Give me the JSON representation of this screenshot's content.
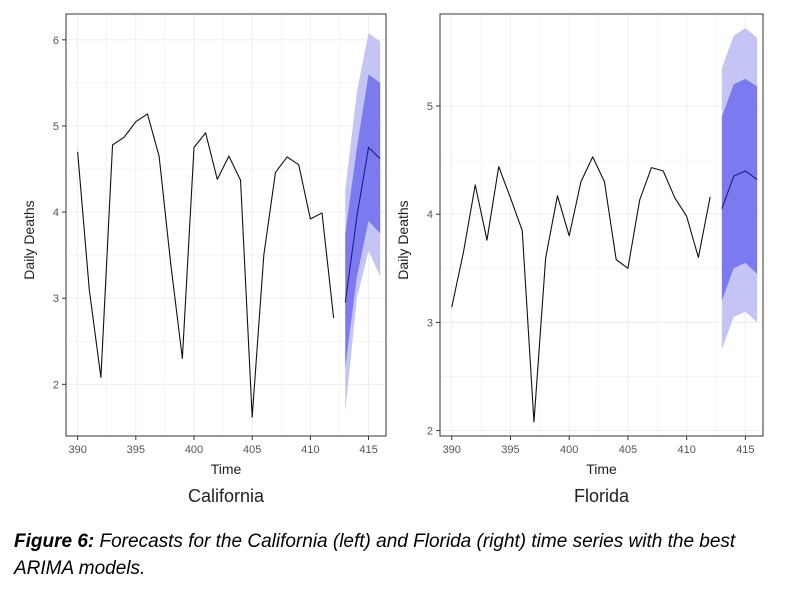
{
  "caption": {
    "label": "Figure 6:",
    "text": " Forecasts for the California (left) and Florida (right) time series with the best ARIMA models."
  },
  "colors": {
    "line": "#111111",
    "band_outer": "#c5c5f5",
    "band_inner": "#7b7bef",
    "forecast_line": "#1d1d8a",
    "grid": "#ececec",
    "panel_border": "#333333"
  },
  "chart_data": [
    {
      "type": "line",
      "title": "California",
      "xlabel": "Time",
      "ylabel": "Daily Deaths",
      "xlim": [
        389,
        416.5
      ],
      "ylim": [
        1.4,
        6.3
      ],
      "xticks": [
        390,
        395,
        400,
        405,
        410,
        415
      ],
      "yticks": [
        2,
        3,
        4,
        5,
        6
      ],
      "grid": true,
      "x": [
        390,
        391,
        392,
        393,
        394,
        395,
        396,
        397,
        398,
        399,
        400,
        401,
        402,
        403,
        404,
        405,
        406,
        407,
        408,
        409,
        410,
        411,
        412
      ],
      "y": [
        4.7,
        3.1,
        2.08,
        4.78,
        4.87,
        5.05,
        5.14,
        4.65,
        3.4,
        2.3,
        4.75,
        4.92,
        4.38,
        4.65,
        4.37,
        1.62,
        3.5,
        4.46,
        4.64,
        4.55,
        3.92,
        3.99,
        2.77
      ],
      "forecast": {
        "x": [
          413,
          414,
          415,
          416
        ],
        "mean": [
          2.95,
          3.95,
          4.75,
          4.62
        ],
        "lo80": [
          2.2,
          3.25,
          3.9,
          3.75
        ],
        "hi80": [
          3.75,
          4.75,
          5.6,
          5.5
        ],
        "lo95": [
          1.68,
          3.0,
          3.55,
          3.25
        ],
        "hi95": [
          4.25,
          5.4,
          6.08,
          5.98
        ]
      }
    },
    {
      "type": "line",
      "title": "Florida",
      "xlabel": "Time",
      "ylabel": "Daily Deaths",
      "xlim": [
        389,
        416.5
      ],
      "ylim": [
        1.95,
        5.85
      ],
      "xticks": [
        390,
        395,
        400,
        405,
        410,
        415
      ],
      "yticks": [
        2,
        3,
        4,
        5
      ],
      "grid": true,
      "x": [
        390,
        391,
        392,
        393,
        394,
        395,
        396,
        397,
        398,
        399,
        400,
        401,
        402,
        403,
        404,
        405,
        406,
        407,
        408,
        409,
        410,
        411,
        412
      ],
      "y": [
        3.14,
        3.65,
        4.27,
        3.76,
        4.44,
        4.15,
        3.85,
        2.08,
        3.6,
        4.17,
        3.8,
        4.3,
        4.53,
        4.3,
        3.58,
        3.5,
        4.13,
        4.43,
        4.4,
        4.15,
        3.98,
        3.6,
        4.16
      ],
      "forecast": {
        "x": [
          413,
          414,
          415,
          416
        ],
        "mean": [
          4.05,
          4.35,
          4.4,
          4.32
        ],
        "lo80": [
          3.2,
          3.5,
          3.55,
          3.45
        ],
        "hi80": [
          4.9,
          5.2,
          5.25,
          5.18
        ],
        "lo95": [
          2.75,
          3.05,
          3.1,
          3.0
        ],
        "hi95": [
          5.35,
          5.65,
          5.72,
          5.63
        ]
      }
    }
  ]
}
